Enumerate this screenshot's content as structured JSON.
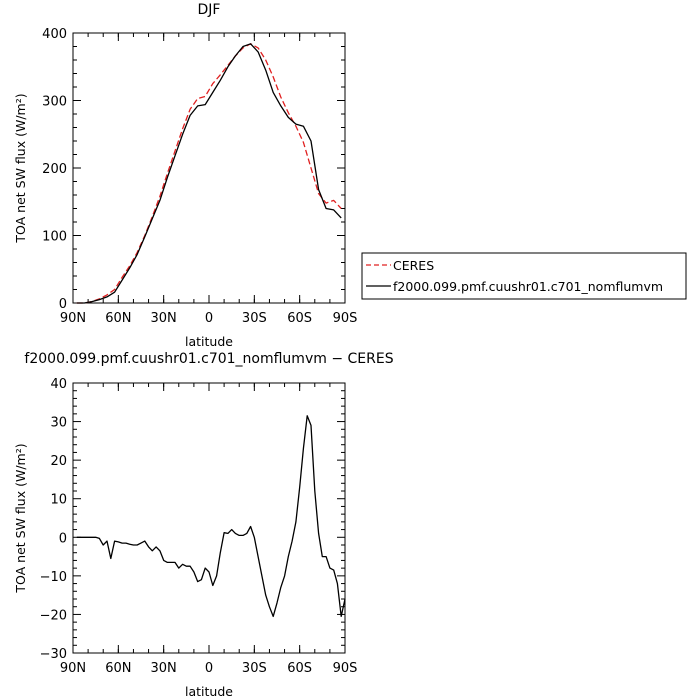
{
  "chart_data": [
    {
      "type": "line",
      "title": "DJF",
      "xlabel": "latitude",
      "ylabel": "TOA net SW flux (W/m²)",
      "xlim": [
        90,
        -90
      ],
      "ylim": [
        0,
        400
      ],
      "x_ticks": [
        90,
        60,
        30,
        0,
        -30,
        -60,
        -90
      ],
      "x_tick_labels": [
        "90N",
        "60N",
        "30N",
        "0",
        "30S",
        "60S",
        "90S"
      ],
      "y_ticks": [
        0,
        100,
        200,
        300,
        400
      ],
      "y_tick_labels": [
        "0",
        "100",
        "200",
        "300",
        "400"
      ],
      "legend_position": "right",
      "series": [
        {
          "name": "CERES",
          "color": "#e02020",
          "dash": "dashed",
          "x": [
            87.5,
            82.5,
            77.5,
            72.5,
            67.5,
            62.5,
            57.5,
            52.5,
            47.5,
            42.5,
            37.5,
            32.5,
            27.5,
            22.5,
            17.5,
            12.5,
            7.5,
            2.5,
            -2.5,
            -7.5,
            -12.5,
            -17.5,
            -22.5,
            -27.5,
            -32.5,
            -37.5,
            -42.5,
            -47.5,
            -52.5,
            -57.5,
            -62.5,
            -67.5,
            -72.5,
            -77.5,
            -82.5,
            -87.5
          ],
          "y": [
            0,
            0,
            2,
            6,
            12,
            20,
            38,
            55,
            75,
            100,
            128,
            158,
            192,
            225,
            258,
            287,
            303,
            306,
            325,
            338,
            352,
            366,
            378,
            384,
            378,
            360,
            335,
            305,
            282,
            262,
            238,
            200,
            162,
            148,
            152,
            140
          ]
        },
        {
          "name": "f2000.099.pmf.cuushr01.c701_nomflumvm",
          "color": "#000000",
          "dash": "solid",
          "x": [
            87.5,
            82.5,
            77.5,
            72.5,
            67.5,
            62.5,
            57.5,
            52.5,
            47.5,
            42.5,
            37.5,
            32.5,
            27.5,
            22.5,
            17.5,
            12.5,
            7.5,
            2.5,
            -2.5,
            -7.5,
            -12.5,
            -17.5,
            -22.5,
            -27.5,
            -32.5,
            -37.5,
            -42.5,
            -47.5,
            -52.5,
            -57.5,
            -62.5,
            -67.5,
            -72.5,
            -77.5,
            -82.5,
            -87.5
          ],
          "y": [
            0,
            0,
            2,
            5,
            9,
            16,
            34,
            52,
            72,
            98,
            125,
            152,
            186,
            218,
            250,
            278,
            292,
            294,
            312,
            330,
            350,
            366,
            380,
            384,
            372,
            345,
            312,
            292,
            275,
            265,
            262,
            240,
            168,
            140,
            138,
            126
          ]
        }
      ]
    },
    {
      "type": "line",
      "title": "f2000.099.pmf.cuushr01.c701_nomflumvm − CERES",
      "xlabel": "latitude",
      "ylabel": "TOA net SW flux (W/m²)",
      "xlim": [
        90,
        -90
      ],
      "ylim": [
        -30,
        40
      ],
      "x_ticks": [
        90,
        60,
        30,
        0,
        -30,
        -60,
        -90
      ],
      "x_tick_labels": [
        "90N",
        "60N",
        "30N",
        "0",
        "30S",
        "60S",
        "90S"
      ],
      "y_ticks": [
        -30,
        -20,
        -10,
        0,
        10,
        20,
        30,
        40
      ],
      "y_tick_labels": [
        "−30",
        "−20",
        "−10",
        "0",
        "10",
        "20",
        "30",
        "40"
      ],
      "series": [
        {
          "color": "#000000",
          "dash": "solid",
          "x": [
            87.5,
            82.5,
            77.5,
            75,
            72.5,
            70,
            67.5,
            65,
            62.5,
            60,
            57.5,
            55,
            52.5,
            50,
            47.5,
            45,
            42.5,
            40,
            37.5,
            35,
            32.5,
            30,
            27.5,
            25,
            22.5,
            20,
            17.5,
            15,
            12.5,
            10,
            7.5,
            5,
            2.5,
            0,
            -2.5,
            -5,
            -7.5,
            -10,
            -12.5,
            -15,
            -17.5,
            -20,
            -22.5,
            -25,
            -27.5,
            -30,
            -32.5,
            -35,
            -37.5,
            -40,
            -42.5,
            -45,
            -47.5,
            -50,
            -52.5,
            -55,
            -57.5,
            -60,
            -62.5,
            -65,
            -67.5,
            -70,
            -72.5,
            -75,
            -77.5,
            -80,
            -82.5,
            -85,
            -87.5,
            -90
          ],
          "y": [
            0,
            0,
            0,
            0,
            -0.3,
            -2,
            -1,
            -5.5,
            -1,
            -1.2,
            -1.5,
            -1.5,
            -1.8,
            -2,
            -2,
            -1.5,
            -1,
            -2.5,
            -3.5,
            -2.5,
            -3.5,
            -6,
            -6.5,
            -6.5,
            -6.5,
            -8,
            -7,
            -7.5,
            -7.5,
            -9,
            -11.5,
            -11,
            -8,
            -9,
            -12.5,
            -10,
            -4,
            1.2,
            1,
            2,
            1,
            0.5,
            0.5,
            1,
            2.8,
            0,
            -5,
            -10,
            -15,
            -18,
            -20.5,
            -17,
            -13,
            -10,
            -5,
            -1,
            4,
            13,
            23,
            31.5,
            29,
            12,
            1,
            -5,
            -5,
            -8,
            -8.5,
            -12,
            -20.5,
            -16
          ]
        }
      ]
    }
  ]
}
